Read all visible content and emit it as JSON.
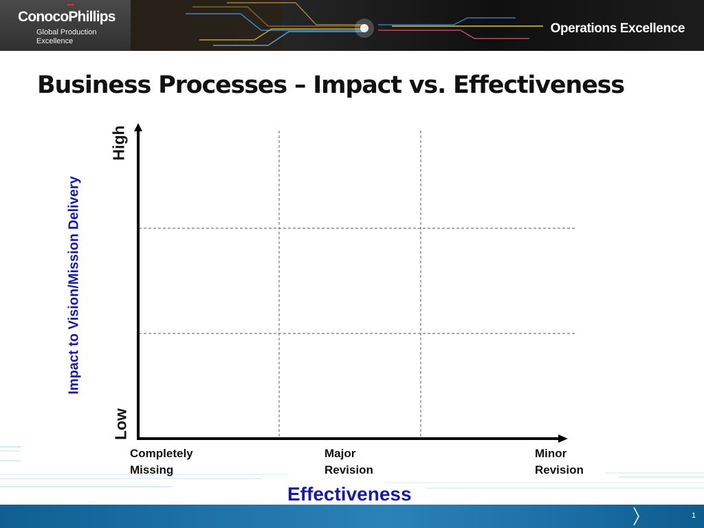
{
  "header": {
    "brand": "ConocoPhillips",
    "brand_sub_line1": "Global Production",
    "brand_sub_line2": "Excellence",
    "tagline": "Operations Excellence"
  },
  "slide": {
    "title": "Business Processes – Impact vs. Effectiveness",
    "number": "1"
  },
  "chart_data": {
    "type": "diagram",
    "y_axis": {
      "label": "Impact to Vision/Mission Delivery",
      "high_label": "High",
      "low_label": "Low"
    },
    "x_axis": {
      "label": "Effectiveness",
      "categories": [
        {
          "line1": "Completely",
          "line2": "Missing"
        },
        {
          "line1": "Major",
          "line2": "Revision"
        },
        {
          "line1": "Minor",
          "line2": "Revision"
        }
      ]
    },
    "grid": {
      "columns": 3,
      "rows": 3,
      "style": "dashed"
    },
    "colors": {
      "axis_label": "#1a1aa0",
      "axis": "#000000",
      "grid": "#777777"
    }
  }
}
